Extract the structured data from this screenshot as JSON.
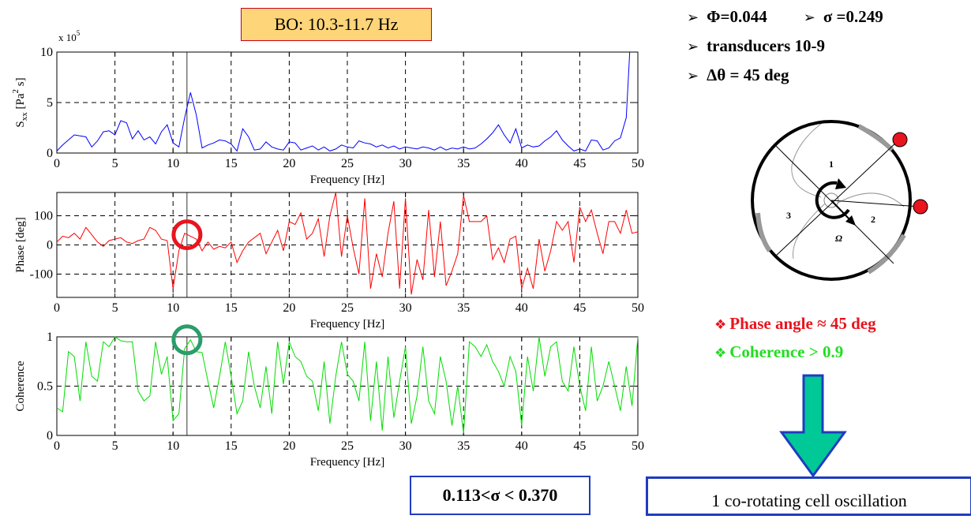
{
  "header": {
    "band_label": "BO: 10.3-11.7 Hz"
  },
  "params": {
    "phi": "Φ=0.044",
    "sigma": "σ =0.249",
    "transducers": "transducers 10-9",
    "delta_theta": "Δθ = 45 deg"
  },
  "diagram": {
    "cell_labels": [
      "1",
      "2",
      "3"
    ],
    "omega_label": "Ω",
    "sensor_color": "#e8141e"
  },
  "notes": {
    "phase": "Phase angle ≈ 45 deg",
    "coherence": "Coherence > 0.9",
    "phase_color": "#e8141e",
    "coherence_color": "#22dd22"
  },
  "sigma_range": "0.113<σ < 0.370",
  "conclusion": "1 co-rotating cell oscillation",
  "arrow_colors": {
    "fill": "#00c896",
    "stroke": "#1f3cbf"
  },
  "chart_data": [
    {
      "type": "line",
      "ylabel": "S_xx [Pa^2 s]",
      "xlabel": "Frequency [Hz]",
      "exponent_label": "x 10^5",
      "xlim": [
        0,
        50
      ],
      "ylim": [
        0,
        10
      ],
      "xticks": [
        0,
        5,
        10,
        15,
        20,
        25,
        30,
        35,
        40,
        45,
        50
      ],
      "yticks": [
        0,
        5,
        10
      ],
      "grid": true,
      "marker_x": 11.2,
      "color": "#0000ff",
      "x": [
        0,
        0.5,
        1,
        1.5,
        2,
        2.5,
        3,
        3.5,
        4,
        4.5,
        5,
        5.5,
        6,
        6.5,
        7,
        7.5,
        8,
        8.5,
        9,
        9.5,
        10,
        10.5,
        11,
        11.5,
        12,
        12.5,
        13,
        13.5,
        14,
        14.5,
        15,
        15.5,
        16,
        16.5,
        17,
        17.5,
        18,
        18.5,
        19,
        19.5,
        20,
        20.5,
        21,
        21.5,
        22,
        22.5,
        23,
        23.5,
        24,
        24.5,
        25,
        25.5,
        26,
        26.5,
        27,
        27.5,
        28,
        28.5,
        29,
        29.5,
        30,
        30.5,
        31,
        31.5,
        32,
        32.5,
        33,
        33.5,
        34,
        34.5,
        35,
        35.5,
        36,
        36.5,
        37,
        37.5,
        38,
        38.5,
        39,
        39.5,
        40,
        40.5,
        41,
        41.5,
        42,
        42.5,
        43,
        43.5,
        44,
        44.5,
        45,
        45.5,
        46,
        46.5,
        47,
        47.5,
        48,
        48.5,
        49,
        49.3
      ],
      "y": [
        0.2,
        0.8,
        1.3,
        1.8,
        1.7,
        1.6,
        0.6,
        1.2,
        2.1,
        2.2,
        1.8,
        3.2,
        3.0,
        1.4,
        2.2,
        1.3,
        1.6,
        0.9,
        2.1,
        2.8,
        1.0,
        0.6,
        3.5,
        6.0,
        3.8,
        0.5,
        0.8,
        1.0,
        1.3,
        1.2,
        0.9,
        0.2,
        2.4,
        1.6,
        0.3,
        0.4,
        1.1,
        0.6,
        0.4,
        0.3,
        1.1,
        1.0,
        0.3,
        0.5,
        0.7,
        0.3,
        0.6,
        0.2,
        0.4,
        0.8,
        0.6,
        0.5,
        1.2,
        1.0,
        0.9,
        0.6,
        0.8,
        0.5,
        0.7,
        0.4,
        0.6,
        0.5,
        0.4,
        0.6,
        0.5,
        0.3,
        0.6,
        0.3,
        0.5,
        0.4,
        0.6,
        0.4,
        0.5,
        0.9,
        1.4,
        2.0,
        2.8,
        1.8,
        1.0,
        2.4,
        0.5,
        0.8,
        0.6,
        0.7,
        1.2,
        1.6,
        2.2,
        1.3,
        0.7,
        0.2,
        0.4,
        0.2,
        1.3,
        1.2,
        0.3,
        0.5,
        1.2,
        1.5,
        3.5,
        10.0
      ]
    },
    {
      "type": "line",
      "ylabel": "Phase [deg]",
      "xlabel": "Frequency [Hz]",
      "xlim": [
        0,
        50
      ],
      "ylim": [
        -180,
        180
      ],
      "xticks": [
        0,
        5,
        10,
        15,
        20,
        25,
        30,
        35,
        40,
        45,
        50
      ],
      "yticks": [
        -100,
        0,
        100
      ],
      "grid": true,
      "marker_x": 11.2,
      "color": "#ff0000",
      "highlight": {
        "x": 11.2,
        "y": 35,
        "color": "#e8141e"
      },
      "x": [
        0,
        0.5,
        1,
        1.5,
        2,
        2.5,
        3,
        3.5,
        4,
        4.5,
        5,
        5.5,
        6,
        6.5,
        7,
        7.5,
        8,
        8.5,
        9,
        9.5,
        10,
        10.5,
        11,
        11.5,
        12,
        12.5,
        13,
        13.5,
        14,
        14.5,
        15,
        15.5,
        16,
        16.5,
        17,
        17.5,
        18,
        18.5,
        19,
        19.5,
        20,
        20.5,
        21,
        21.5,
        22,
        22.5,
        23,
        23.5,
        24,
        24.5,
        25,
        25.5,
        26,
        26.5,
        27,
        27.5,
        28,
        28.5,
        29,
        29.5,
        30,
        30.5,
        31,
        31.5,
        32,
        32.5,
        33,
        33.5,
        34,
        34.5,
        35,
        35.5,
        36,
        36.5,
        37,
        37.5,
        38,
        38.5,
        39,
        39.5,
        40,
        40.5,
        41,
        41.5,
        42,
        42.5,
        43,
        43.5,
        44,
        44.5,
        45,
        45.5,
        46,
        46.5,
        47,
        47.5,
        48,
        48.5,
        49,
        49.5,
        50
      ],
      "y": [
        10,
        30,
        25,
        40,
        20,
        60,
        35,
        10,
        -5,
        15,
        20,
        25,
        10,
        5,
        15,
        20,
        60,
        50,
        20,
        15,
        -150,
        -20,
        40,
        30,
        20,
        -20,
        10,
        -15,
        -5,
        -10,
        10,
        -60,
        -20,
        10,
        25,
        40,
        -30,
        10,
        50,
        -20,
        80,
        70,
        110,
        20,
        40,
        90,
        -40,
        100,
        180,
        -40,
        100,
        -10,
        -100,
        160,
        -150,
        -30,
        -110,
        40,
        150,
        -150,
        160,
        -170,
        -50,
        -120,
        120,
        -110,
        80,
        -140,
        -90,
        -30,
        170,
        80,
        80,
        80,
        100,
        -50,
        -10,
        -60,
        20,
        30,
        -150,
        -80,
        -150,
        20,
        -90,
        -20,
        80,
        50,
        80,
        -60,
        130,
        80,
        120,
        40,
        -30,
        80,
        80,
        40,
        120,
        40,
        45
      ]
    },
    {
      "type": "line",
      "ylabel": "Coherence",
      "xlabel": "Frequency [Hz]",
      "xlim": [
        0,
        50
      ],
      "ylim": [
        0,
        1
      ],
      "xticks": [
        0,
        5,
        10,
        15,
        20,
        25,
        30,
        35,
        40,
        45,
        50
      ],
      "yticks": [
        0,
        0.5,
        1
      ],
      "grid": true,
      "marker_x": 11.2,
      "color": "#00dd00",
      "highlight": {
        "x": 11.2,
        "y": 0.97,
        "color": "#2a9d6a"
      },
      "x": [
        0,
        0.5,
        1,
        1.5,
        2,
        2.5,
        3,
        3.5,
        4,
        4.5,
        5,
        5.5,
        6,
        6.5,
        7,
        7.5,
        8,
        8.5,
        9,
        9.5,
        10,
        10.5,
        11,
        11.5,
        12,
        12.5,
        13,
        13.5,
        14,
        14.5,
        15,
        15.5,
        16,
        16.5,
        17,
        17.5,
        18,
        18.5,
        19,
        19.5,
        20,
        20.5,
        21,
        21.5,
        22,
        22.5,
        23,
        23.5,
        24,
        24.5,
        25,
        25.5,
        26,
        26.5,
        27,
        27.5,
        28,
        28.5,
        29,
        29.5,
        30,
        30.5,
        31,
        31.5,
        32,
        32.5,
        33,
        33.5,
        34,
        34.5,
        35,
        35.5,
        36,
        36.5,
        37,
        37.5,
        38,
        38.5,
        39,
        39.5,
        40,
        40.5,
        41,
        41.5,
        42,
        42.5,
        43,
        43.5,
        44,
        44.5,
        45,
        45.5,
        46,
        46.5,
        47,
        47.5,
        48,
        48.5,
        49,
        49.5,
        50
      ],
      "y": [
        0.28,
        0.24,
        0.85,
        0.8,
        0.35,
        0.95,
        0.6,
        0.55,
        0.95,
        0.9,
        1.0,
        0.96,
        0.95,
        0.95,
        0.45,
        0.35,
        0.4,
        0.95,
        0.62,
        0.8,
        0.15,
        0.22,
        0.88,
        0.97,
        0.85,
        0.84,
        0.55,
        0.28,
        0.6,
        0.95,
        0.6,
        0.22,
        0.35,
        0.85,
        0.5,
        0.28,
        0.7,
        0.22,
        0.95,
        0.52,
        0.95,
        0.8,
        0.75,
        0.6,
        0.55,
        0.25,
        0.75,
        0.12,
        0.6,
        0.95,
        0.62,
        0.55,
        0.35,
        0.95,
        0.15,
        0.75,
        0.05,
        0.8,
        0.18,
        0.55,
        0.9,
        0.12,
        0.4,
        0.9,
        0.35,
        0.22,
        0.8,
        0.55,
        0.1,
        0.5,
        0.02,
        0.95,
        0.9,
        0.8,
        0.92,
        0.75,
        0.65,
        0.5,
        0.8,
        0.65,
        0.1,
        0.8,
        0.45,
        1.0,
        0.6,
        0.9,
        0.95,
        0.55,
        0.45,
        0.9,
        0.5,
        0.25,
        0.9,
        0.35,
        0.5,
        0.75,
        0.5,
        0.25,
        0.7,
        0.3,
        1.0
      ]
    }
  ]
}
